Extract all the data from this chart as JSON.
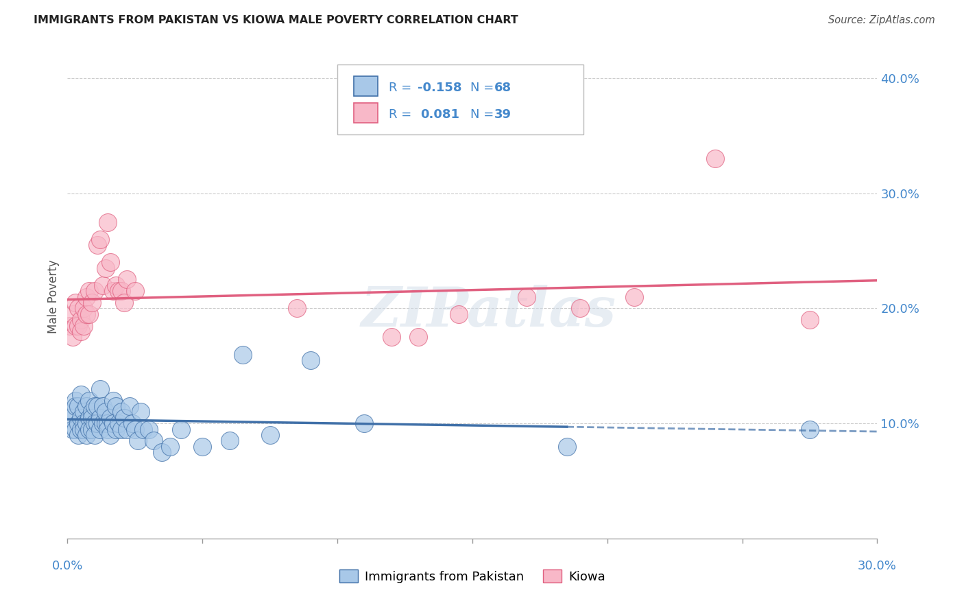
{
  "title": "IMMIGRANTS FROM PAKISTAN VS KIOWA MALE POVERTY CORRELATION CHART",
  "source": "Source: ZipAtlas.com",
  "ylabel": "Male Poverty",
  "watermark": "ZIPatlas",
  "legend_blue_r": "-0.158",
  "legend_blue_n": "68",
  "legend_pink_r": "0.081",
  "legend_pink_n": "39",
  "legend_blue_label": "Immigrants from Pakistan",
  "legend_pink_label": "Kiowa",
  "xlim": [
    0.0,
    0.3
  ],
  "ylim": [
    0.0,
    0.42
  ],
  "yticks": [
    0.1,
    0.2,
    0.3,
    0.4
  ],
  "ytick_labels": [
    "10.0%",
    "20.0%",
    "30.0%",
    "40.0%"
  ],
  "xticks": [
    0.0,
    0.05,
    0.1,
    0.15,
    0.2,
    0.25,
    0.3
  ],
  "blue_color": "#a8c8e8",
  "pink_color": "#f8b8c8",
  "blue_line_color": "#4070a8",
  "pink_line_color": "#e06080",
  "blue_scatter_x": [
    0.001,
    0.002,
    0.002,
    0.003,
    0.003,
    0.003,
    0.004,
    0.004,
    0.004,
    0.005,
    0.005,
    0.005,
    0.006,
    0.006,
    0.006,
    0.007,
    0.007,
    0.007,
    0.008,
    0.008,
    0.008,
    0.009,
    0.009,
    0.009,
    0.01,
    0.01,
    0.01,
    0.011,
    0.011,
    0.012,
    0.012,
    0.012,
    0.013,
    0.013,
    0.014,
    0.014,
    0.015,
    0.015,
    0.016,
    0.016,
    0.017,
    0.017,
    0.018,
    0.018,
    0.019,
    0.02,
    0.02,
    0.021,
    0.022,
    0.023,
    0.024,
    0.025,
    0.026,
    0.027,
    0.028,
    0.03,
    0.032,
    0.035,
    0.038,
    0.042,
    0.05,
    0.06,
    0.065,
    0.075,
    0.09,
    0.11,
    0.185,
    0.275
  ],
  "blue_scatter_y": [
    0.105,
    0.11,
    0.095,
    0.12,
    0.095,
    0.115,
    0.1,
    0.09,
    0.115,
    0.105,
    0.095,
    0.125,
    0.11,
    0.1,
    0.095,
    0.115,
    0.1,
    0.09,
    0.105,
    0.095,
    0.12,
    0.11,
    0.105,
    0.095,
    0.1,
    0.115,
    0.09,
    0.115,
    0.1,
    0.13,
    0.095,
    0.105,
    0.1,
    0.115,
    0.1,
    0.11,
    0.1,
    0.095,
    0.105,
    0.09,
    0.12,
    0.1,
    0.095,
    0.115,
    0.1,
    0.11,
    0.095,
    0.105,
    0.095,
    0.115,
    0.1,
    0.095,
    0.085,
    0.11,
    0.095,
    0.095,
    0.085,
    0.075,
    0.08,
    0.095,
    0.08,
    0.085,
    0.16,
    0.09,
    0.155,
    0.1,
    0.08,
    0.095
  ],
  "pink_scatter_x": [
    0.001,
    0.002,
    0.002,
    0.003,
    0.003,
    0.004,
    0.004,
    0.005,
    0.005,
    0.006,
    0.006,
    0.007,
    0.007,
    0.008,
    0.008,
    0.009,
    0.01,
    0.011,
    0.012,
    0.013,
    0.014,
    0.015,
    0.016,
    0.017,
    0.018,
    0.019,
    0.02,
    0.021,
    0.022,
    0.025,
    0.085,
    0.12,
    0.145,
    0.17,
    0.19,
    0.21,
    0.24,
    0.275,
    0.13
  ],
  "pink_scatter_y": [
    0.185,
    0.195,
    0.175,
    0.205,
    0.185,
    0.2,
    0.185,
    0.19,
    0.18,
    0.2,
    0.185,
    0.21,
    0.195,
    0.215,
    0.195,
    0.205,
    0.215,
    0.255,
    0.26,
    0.22,
    0.235,
    0.275,
    0.24,
    0.215,
    0.22,
    0.215,
    0.215,
    0.205,
    0.225,
    0.215,
    0.2,
    0.175,
    0.195,
    0.21,
    0.2,
    0.21,
    0.33,
    0.19,
    0.175
  ],
  "background_color": "#ffffff",
  "grid_color": "#cccccc"
}
